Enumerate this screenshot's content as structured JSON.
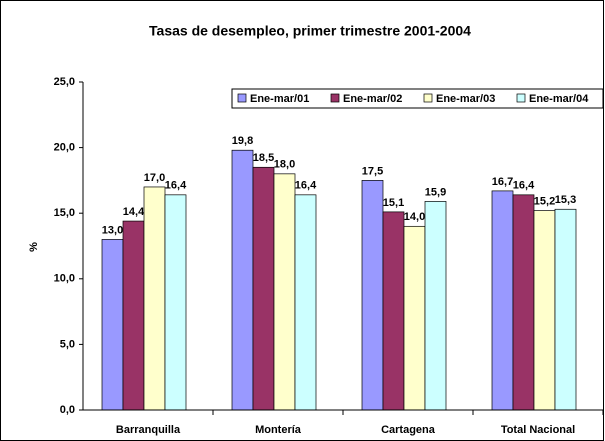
{
  "chart_data": {
    "type": "bar",
    "title": "Tasas de desempleo,  primer trimestre 2001-2004",
    "y_label": "%",
    "categories": [
      "Barranquilla",
      "Montería",
      "Cartagena",
      "Total Nacional"
    ],
    "series": [
      {
        "name": "Ene-mar/01",
        "color": "#9999ff",
        "values": [
          13.0,
          19.8,
          17.5,
          16.7
        ],
        "value_labels": [
          "13,0",
          "19,8",
          "17,5",
          "16,7"
        ]
      },
      {
        "name": "Ene-mar/02",
        "color": "#993366",
        "values": [
          14.4,
          18.5,
          15.1,
          16.4
        ],
        "value_labels": [
          "14,4",
          "18,5",
          "15,1",
          "16,4"
        ]
      },
      {
        "name": "Ene-mar/03",
        "color": "#ffffcc",
        "values": [
          17.0,
          18.0,
          14.0,
          15.2
        ],
        "value_labels": [
          "17,0",
          "18,0",
          "14,0",
          "15,2"
        ]
      },
      {
        "name": "Ene-mar/04",
        "color": "#ccffff",
        "values": [
          16.4,
          16.4,
          15.9,
          15.3
        ],
        "value_labels": [
          "16,4",
          "16,4",
          "15,9",
          "15,3"
        ]
      }
    ],
    "ylim": [
      0,
      25
    ],
    "yticks": [
      {
        "value": 0,
        "label": "0,0"
      },
      {
        "value": 5,
        "label": "5,0"
      },
      {
        "value": 10,
        "label": "10,0"
      },
      {
        "value": 15,
        "label": "15,0"
      },
      {
        "value": 20,
        "label": "20,0"
      },
      {
        "value": 25,
        "label": "25,0"
      }
    ],
    "legend": "top-right",
    "grid": false
  }
}
